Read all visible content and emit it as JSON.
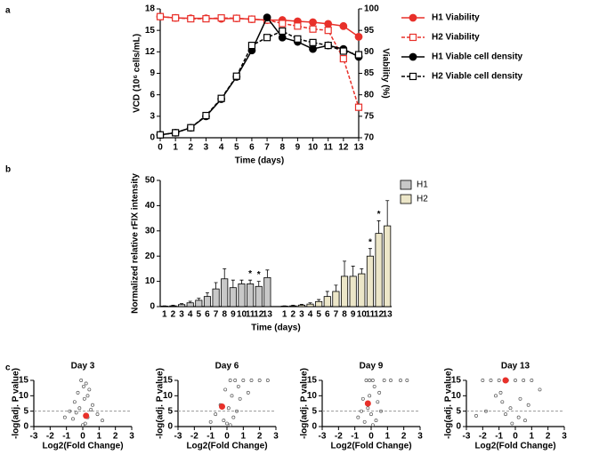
{
  "chart_data": [
    {
      "type": "line",
      "label": "a",
      "xlabel": "Time (days)",
      "ylabel": "VCD (10⁶ cells/mL)",
      "y2label": "Viability (%)",
      "x": [
        0,
        1,
        2,
        3,
        4,
        5,
        6,
        7,
        8,
        9,
        10,
        11,
        12,
        13
      ],
      "xlim": [
        0,
        13
      ],
      "xticks": [
        0,
        1,
        2,
        3,
        4,
        5,
        6,
        7,
        8,
        9,
        10,
        11,
        12,
        13
      ],
      "ylim": [
        0,
        18
      ],
      "yticks": [
        0,
        3,
        6,
        9,
        12,
        15,
        18
      ],
      "y2lim": [
        70,
        100
      ],
      "y2ticks": [
        70,
        75,
        80,
        85,
        90,
        95,
        100
      ],
      "legend": "right",
      "series": [
        {
          "name": "H1 Viability",
          "color": "#e8302a",
          "marker": "circle",
          "filled": true,
          "dashed": false,
          "axis": "y2",
          "values": [
            98.2,
            97.9,
            97.8,
            97.8,
            97.7,
            97.8,
            97.6,
            97.4,
            97.4,
            97.1,
            96.9,
            96.5,
            96.0,
            93.5
          ]
        },
        {
          "name": "H2 Viability",
          "color": "#e8302a",
          "marker": "square",
          "filled": false,
          "dashed": true,
          "axis": "y2",
          "values": [
            98.2,
            97.9,
            97.7,
            97.7,
            97.9,
            97.8,
            97.6,
            97.4,
            96.6,
            96.0,
            95.3,
            95.0,
            88.4,
            77.1
          ]
        },
        {
          "name": "H1 Viable cell density",
          "color": "#000000",
          "marker": "circle",
          "filled": true,
          "dashed": false,
          "values": [
            0.4,
            0.7,
            1.4,
            3.0,
            5.4,
            8.5,
            12.2,
            16.8,
            14.0,
            13.4,
            12.4,
            12.9,
            12.4,
            11.3
          ]
        },
        {
          "name": "H2 Viable cell density",
          "color": "#000000",
          "marker": "square",
          "filled": false,
          "dashed": true,
          "values": [
            0.4,
            0.7,
            1.4,
            3.1,
            5.5,
            8.6,
            12.9,
            14.0,
            14.9,
            13.8,
            13.3,
            12.9,
            12.1,
            11.6
          ]
        }
      ]
    },
    {
      "type": "bar",
      "label": "b",
      "xlabel": "Time (days)",
      "ylabel": "Normalized relative rFIX intensity",
      "categories": [
        "1",
        "2",
        "3",
        "4",
        "5",
        "6",
        "7",
        "8",
        "9",
        "10",
        "11",
        "12",
        "13"
      ],
      "ylim": [
        0,
        50
      ],
      "yticks": [
        0,
        10,
        20,
        30,
        40,
        50
      ],
      "legend": "upper right",
      "series": [
        {
          "name": "H1",
          "color": "#c8c8c8",
          "values": [
            0.2,
            0.3,
            0.8,
            1.5,
            2.5,
            4,
            7,
            11,
            7.5,
            9,
            9,
            8,
            11.5
          ],
          "errors": [
            0.1,
            0.2,
            0.4,
            0.6,
            0.8,
            1.5,
            2.5,
            4,
            3,
            1.5,
            1.5,
            2,
            3
          ],
          "annotations": [
            null,
            null,
            null,
            null,
            null,
            null,
            null,
            null,
            null,
            null,
            "*",
            "*",
            null
          ]
        },
        {
          "name": "H2",
          "color": "#ece6c8",
          "values": [
            0.2,
            0.3,
            0.6,
            1,
            2,
            4,
            6,
            12,
            12,
            13,
            20,
            29,
            32
          ],
          "errors": [
            0.1,
            0.2,
            0.3,
            0.5,
            0.8,
            2,
            2.5,
            6,
            4,
            2,
            3,
            5,
            10
          ],
          "annotations": [
            null,
            null,
            null,
            null,
            null,
            null,
            null,
            null,
            null,
            null,
            "*",
            "*",
            null
          ]
        }
      ]
    },
    {
      "type": "scatter",
      "label": "c",
      "title": "Day 3",
      "xlabel": "Log2(Fold Change)",
      "ylabel": "-log(adj. P value)",
      "xlim": [
        -3,
        3
      ],
      "xticks": [
        -3,
        -2,
        -1,
        0,
        1,
        2,
        3
      ],
      "ylim": [
        0,
        15
      ],
      "yticks": [
        0,
        5,
        10,
        15
      ],
      "threshold": 5,
      "color": "#555555",
      "x": [
        -0.1,
        0.2,
        -0.3,
        0.4,
        -0.5,
        0.1,
        0.6,
        -0.8,
        0.3,
        -0.2,
        0.9,
        -1.1,
        0.05,
        0.5,
        -0.4,
        1.2,
        -0.6,
        0.15,
        0.0,
        0.3
      ],
      "values": [
        15,
        14,
        11,
        12,
        8,
        9,
        7,
        5,
        10,
        6,
        4,
        3,
        13,
        5.5,
        4.5,
        2,
        2.5,
        1,
        0.5,
        3
      ],
      "highlight": {
        "x": 0.2,
        "value": 3.5,
        "color": "#e8302a"
      }
    },
    {
      "type": "scatter",
      "title": "Day 6",
      "xlabel": "Log2(Fold Change)",
      "ylabel": "-log(adj. P value)",
      "xlim": [
        -3,
        3
      ],
      "xticks": [
        -3,
        -2,
        -1,
        0,
        1,
        2,
        3
      ],
      "ylim": [
        0,
        15
      ],
      "yticks": [
        0,
        5,
        10,
        15
      ],
      "threshold": 5,
      "color": "#555555",
      "x": [
        0.2,
        0.5,
        1.0,
        1.5,
        -0.1,
        0.3,
        0.8,
        -0.4,
        0.1,
        0.6,
        -0.7,
        0.4,
        1.3,
        2.0,
        -0.2,
        0.0,
        0.7,
        -1.0,
        0.2,
        2.5
      ],
      "values": [
        15,
        15,
        15,
        15,
        12,
        10,
        9,
        7,
        6,
        5,
        4,
        3,
        11,
        15,
        2,
        1,
        13,
        1.5,
        0.5,
        15
      ],
      "highlight": {
        "x": -0.3,
        "value": 6.5,
        "color": "#e8302a"
      }
    },
    {
      "type": "scatter",
      "title": "Day 9",
      "xlabel": "Log2(Fold Change)",
      "ylabel": "-log(adj. P value)",
      "xlim": [
        -3,
        3
      ],
      "xticks": [
        -3,
        -2,
        -1,
        0,
        1,
        2,
        3
      ],
      "ylim": [
        0,
        15
      ],
      "yticks": [
        0,
        5,
        10,
        15
      ],
      "threshold": 5,
      "color": "#555555",
      "x": [
        -0.3,
        -0.1,
        0.1,
        0.2,
        0.8,
        1.2,
        -0.5,
        0.4,
        -0.2,
        0.0,
        0.6,
        -0.8,
        0.3,
        -0.4,
        1.8,
        0.1,
        -0.6,
        0.5,
        -0.1,
        2.2
      ],
      "values": [
        15,
        15,
        15,
        13,
        15,
        15,
        9,
        8,
        6,
        4,
        5,
        3,
        2,
        1.5,
        15,
        0.5,
        5,
        11,
        10,
        15
      ],
      "highlight": {
        "x": -0.2,
        "value": 7.5,
        "color": "#e8302a"
      }
    },
    {
      "type": "scatter",
      "title": "Day 13",
      "xlabel": "Log2(Fold Change)",
      "ylabel": "-log(adj. P value)",
      "xlim": [
        -3,
        3
      ],
      "xticks": [
        -3,
        -2,
        -1,
        0,
        1,
        2,
        3
      ],
      "ylim": [
        0,
        15
      ],
      "yticks": [
        0,
        5,
        10,
        15
      ],
      "threshold": 5,
      "color": "#555555",
      "x": [
        -2.0,
        -1.5,
        -1.0,
        -0.5,
        0.0,
        0.5,
        1.0,
        -1.2,
        -0.8,
        0.3,
        -0.3,
        0.8,
        -1.8,
        -0.6,
        0.2,
        -0.2,
        1.5,
        -2.4,
        0.6,
        -0.9
      ],
      "values": [
        15,
        15,
        15,
        15,
        15,
        15,
        15,
        10,
        8,
        9,
        6,
        7,
        5,
        4,
        3,
        1,
        12,
        3.5,
        2,
        11
      ],
      "highlight": {
        "x": -0.6,
        "value": 15,
        "color": "#e8302a"
      }
    }
  ]
}
